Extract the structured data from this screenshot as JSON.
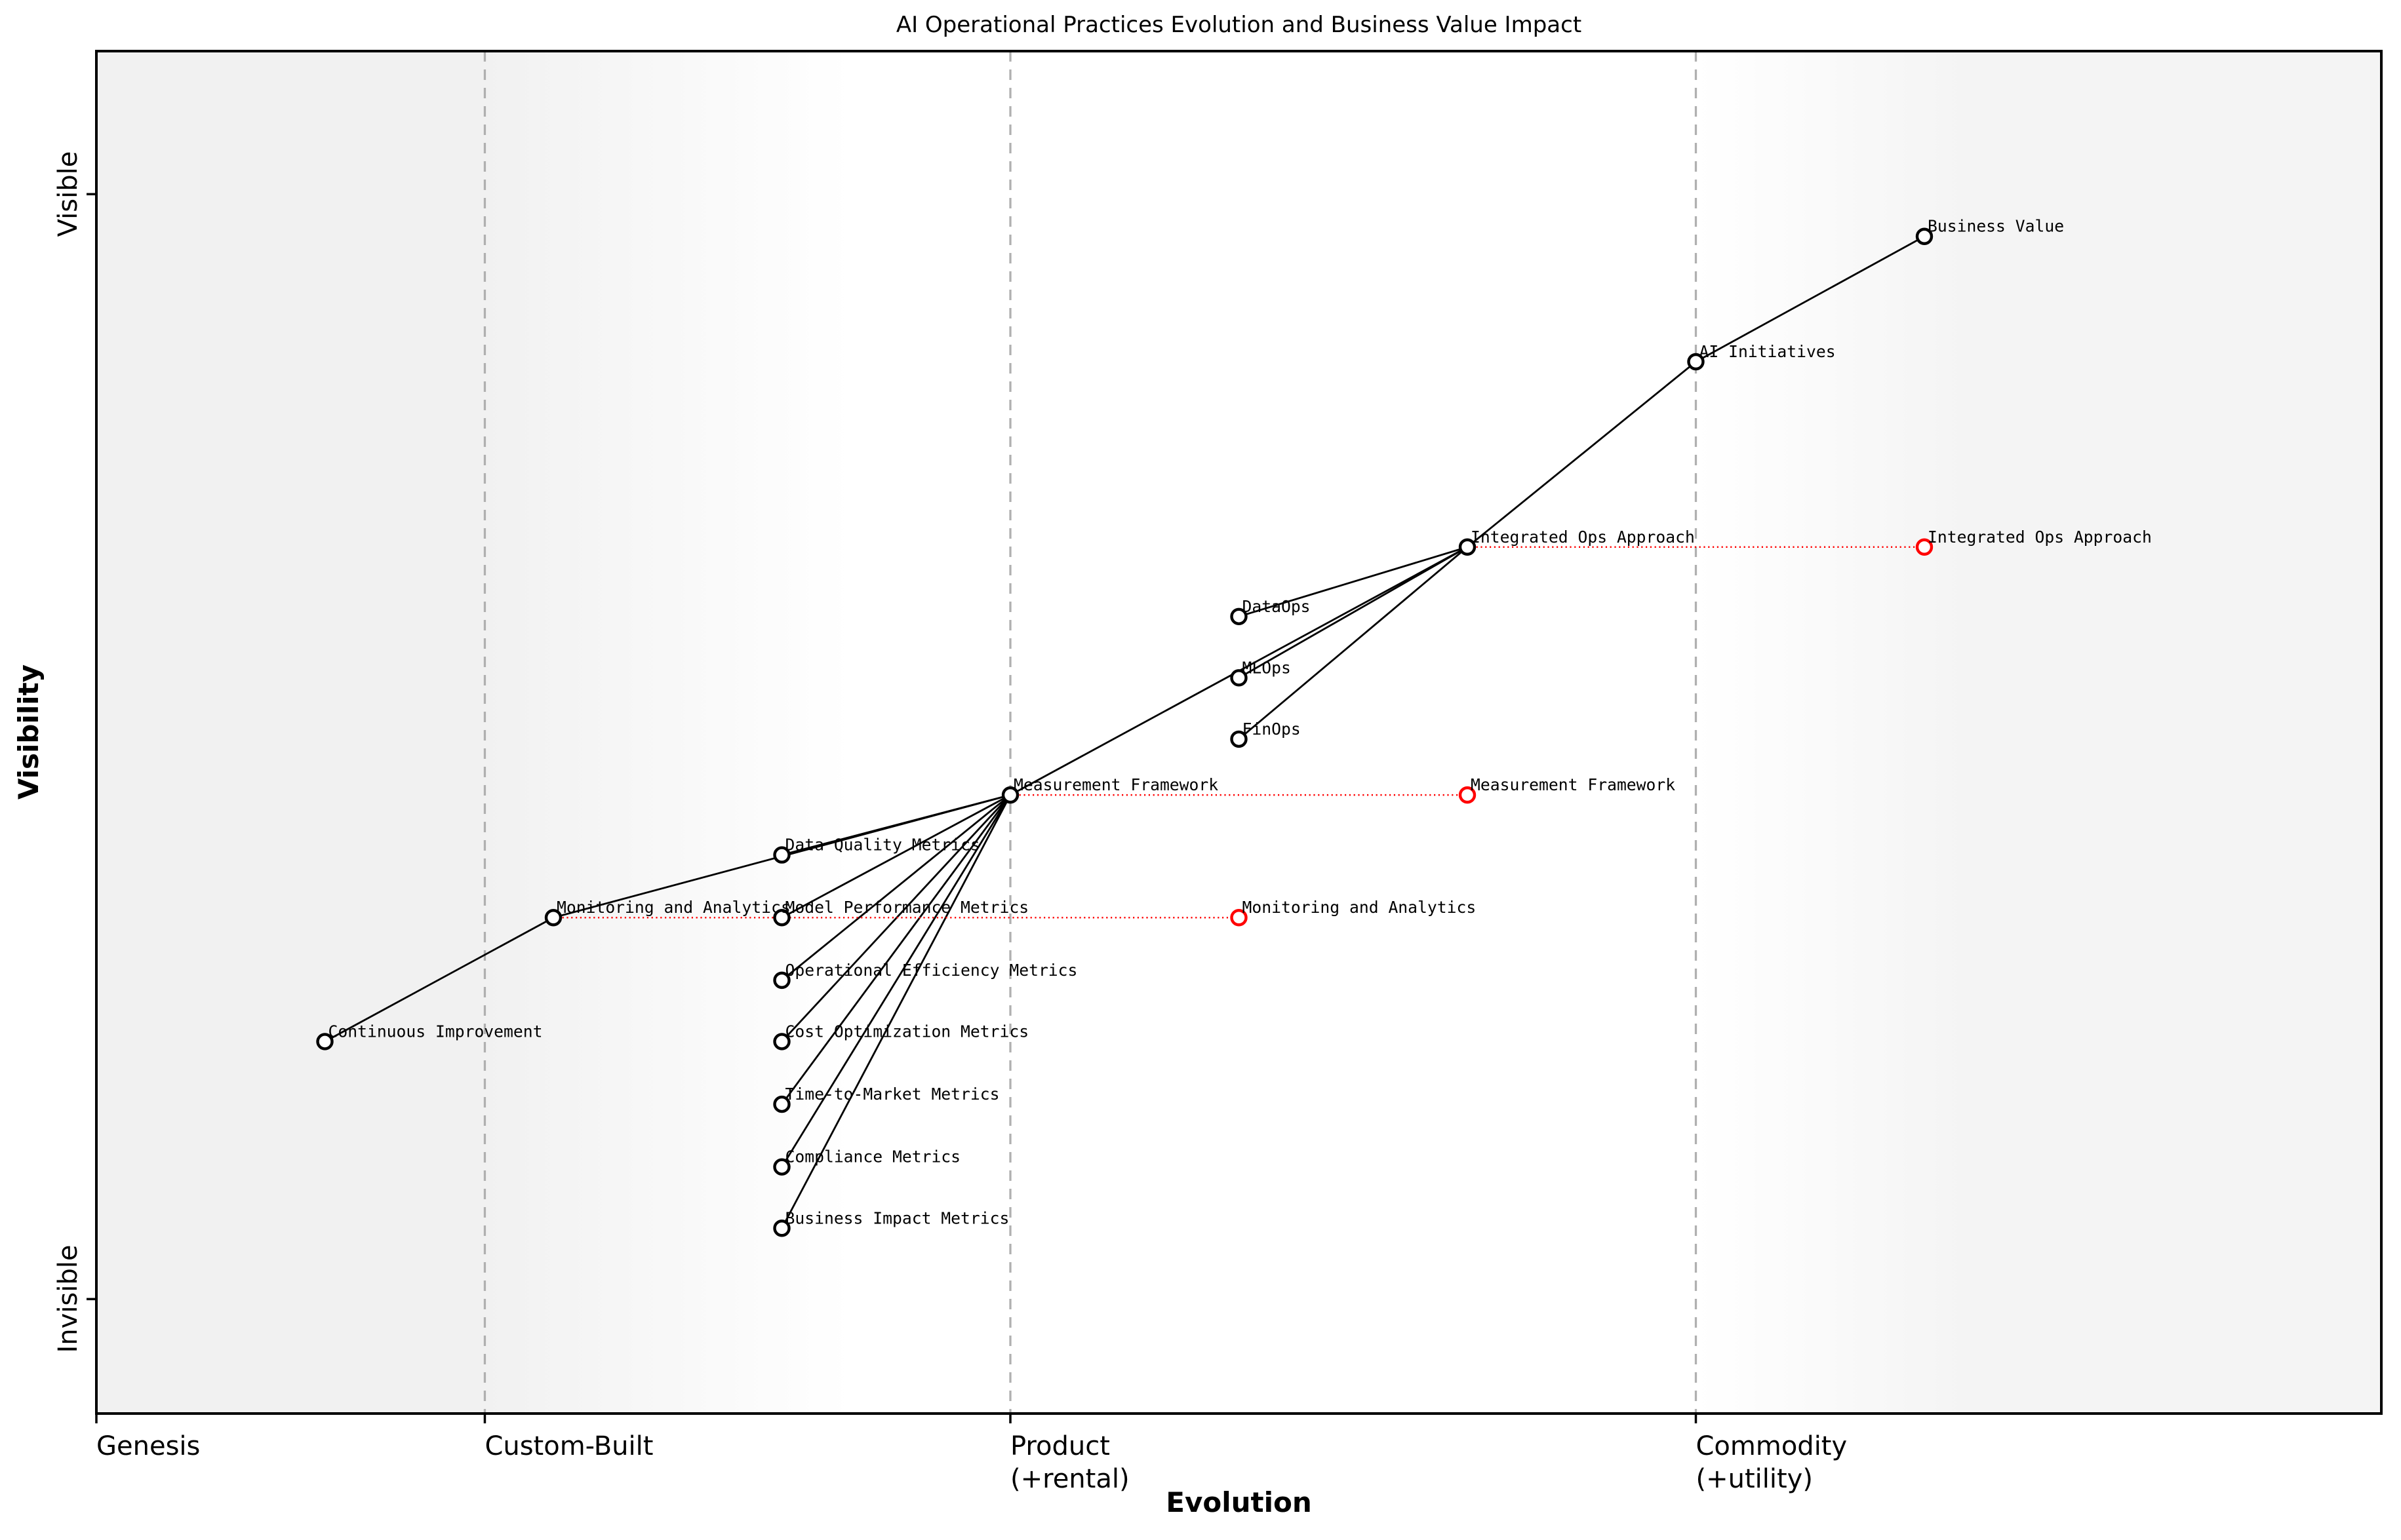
{
  "chart_data": {
    "type": "scatter",
    "variant": "wardley_map",
    "title": "AI Operational Practices Evolution and Business Value Impact",
    "xlabel": "Evolution",
    "ylabel": "Visibility",
    "xlim": [
      0,
      1
    ],
    "ylim": [
      0,
      1
    ],
    "grid": "dashed vertical lines at evolution stage boundaries",
    "legend": "none",
    "x_sections": [
      {
        "label": "Genesis",
        "position": 0.0
      },
      {
        "label": "Custom-Built",
        "position": 0.17
      },
      {
        "label": "Product\n(+rental)",
        "position": 0.4
      },
      {
        "label": "Commodity\n(+utility)",
        "position": 0.7
      }
    ],
    "y_ticks": [
      {
        "label": "Visible",
        "position": 0.895
      },
      {
        "label": "Invisible",
        "position": 0.084
      }
    ],
    "colors": {
      "node_stroke": "#000000",
      "node_fill": "#ffffff",
      "edge": "#000000",
      "evolved_node": "#ff0000",
      "evolve_line": "#ff0000",
      "section_line": "#b0b0b0",
      "spine": "#000000",
      "plot_bg_left": "#f1f1f1",
      "plot_bg_middle": "#ffffff",
      "plot_bg_right": "#f4f4f4"
    },
    "nodes": [
      {
        "id": "business-value",
        "label": "Business Value",
        "evolution": 0.8,
        "visibility": 0.864
      },
      {
        "id": "ai-initiatives",
        "label": "AI Initiatives",
        "evolution": 0.7,
        "visibility": 0.772
      },
      {
        "id": "integrated-ops-approach",
        "label": "Integrated Ops Approach",
        "evolution": 0.6,
        "visibility": 0.636,
        "evolve_to": 0.8
      },
      {
        "id": "dataops",
        "label": "DataOps",
        "evolution": 0.5,
        "visibility": 0.585
      },
      {
        "id": "mlops",
        "label": "MLOps",
        "evolution": 0.5,
        "visibility": 0.54
      },
      {
        "id": "finops",
        "label": "FinOps",
        "evolution": 0.5,
        "visibility": 0.495
      },
      {
        "id": "measurement-framework",
        "label": "Measurement Framework",
        "evolution": 0.4,
        "visibility": 0.454,
        "evolve_to": 0.6
      },
      {
        "id": "data-quality-metrics",
        "label": "Data Quality Metrics",
        "evolution": 0.3,
        "visibility": 0.41
      },
      {
        "id": "model-performance-metrics",
        "label": "Model Performance Metrics",
        "evolution": 0.3,
        "visibility": 0.364
      },
      {
        "id": "operational-efficiency-metrics",
        "label": "Operational Efficiency Metrics",
        "evolution": 0.3,
        "visibility": 0.318
      },
      {
        "id": "cost-optimization-metrics",
        "label": "Cost Optimization Metrics",
        "evolution": 0.3,
        "visibility": 0.273
      },
      {
        "id": "time-to-market-metrics",
        "label": "Time-to-Market Metrics",
        "evolution": 0.3,
        "visibility": 0.227
      },
      {
        "id": "compliance-metrics",
        "label": "Compliance Metrics",
        "evolution": 0.3,
        "visibility": 0.181
      },
      {
        "id": "business-impact-metrics",
        "label": "Business Impact Metrics",
        "evolution": 0.3,
        "visibility": 0.136
      },
      {
        "id": "monitoring-and-analytics",
        "label": "Monitoring and Analytics",
        "evolution": 0.2,
        "visibility": 0.364,
        "evolve_to": 0.5
      },
      {
        "id": "continuous-improvement",
        "label": "Continuous Improvement",
        "evolution": 0.1,
        "visibility": 0.273
      }
    ],
    "edges": [
      [
        "business-value",
        "ai-initiatives"
      ],
      [
        "ai-initiatives",
        "integrated-ops-approach"
      ],
      [
        "integrated-ops-approach",
        "dataops"
      ],
      [
        "integrated-ops-approach",
        "mlops"
      ],
      [
        "integrated-ops-approach",
        "finops"
      ],
      [
        "integrated-ops-approach",
        "measurement-framework"
      ],
      [
        "measurement-framework",
        "data-quality-metrics"
      ],
      [
        "measurement-framework",
        "model-performance-metrics"
      ],
      [
        "measurement-framework",
        "operational-efficiency-metrics"
      ],
      [
        "measurement-framework",
        "cost-optimization-metrics"
      ],
      [
        "measurement-framework",
        "time-to-market-metrics"
      ],
      [
        "measurement-framework",
        "compliance-metrics"
      ],
      [
        "measurement-framework",
        "business-impact-metrics"
      ],
      [
        "measurement-framework",
        "monitoring-and-analytics"
      ],
      [
        "monitoring-and-analytics",
        "continuous-improvement"
      ]
    ]
  }
}
